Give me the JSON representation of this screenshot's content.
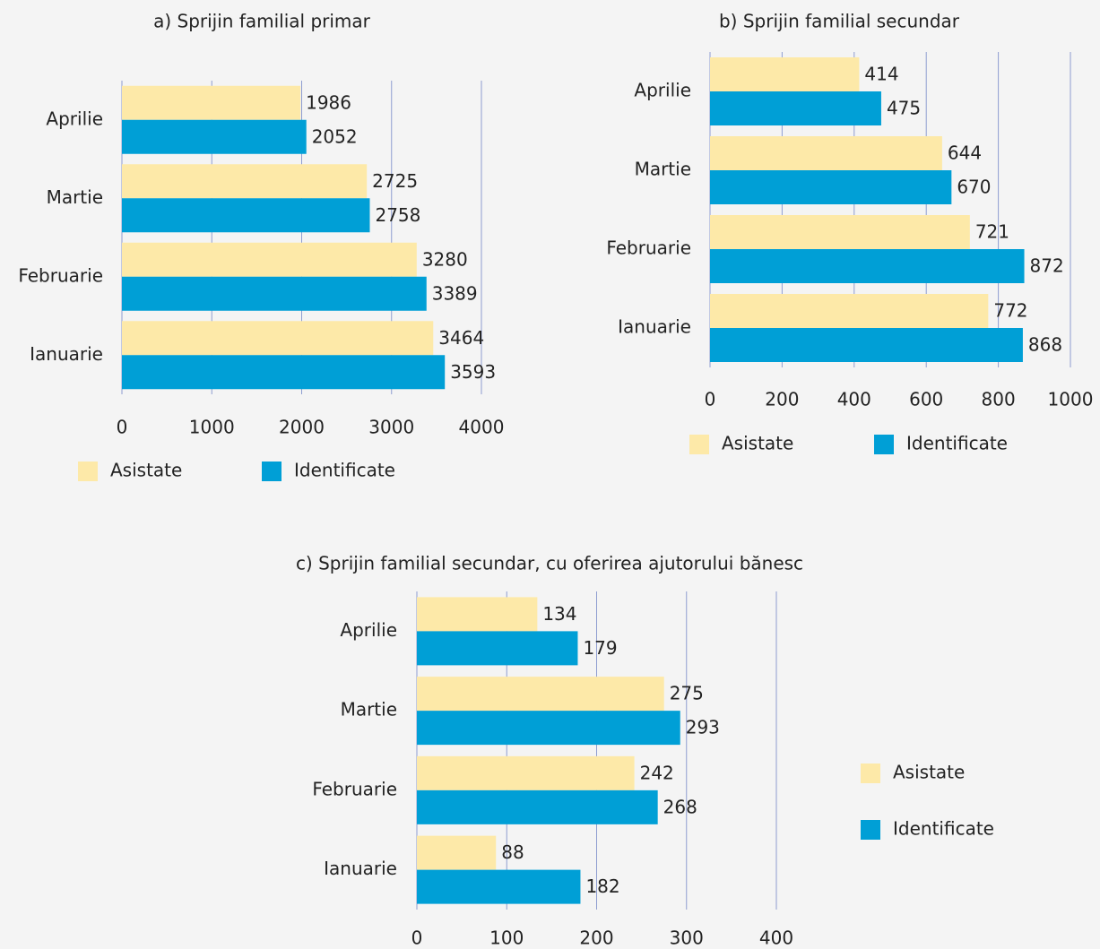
{
  "chart_data": [
    {
      "type": "bar",
      "orientation": "horizontal",
      "title": "a) Sprijin familial primar",
      "categories": [
        "Aprilie",
        "Martie",
        "Februarie",
        "Ianuarie"
      ],
      "series": [
        {
          "name": "Asistate",
          "color": "#fde9a8",
          "values": [
            1986,
            2725,
            3280,
            3464
          ]
        },
        {
          "name": "Identificate",
          "color": "#009fd6",
          "values": [
            2052,
            2758,
            3389,
            3593
          ]
        }
      ],
      "xlim": [
        0,
        4000
      ],
      "xticks": [
        0,
        1000,
        2000,
        3000,
        4000
      ],
      "grid": true,
      "legend": "bottom"
    },
    {
      "type": "bar",
      "orientation": "horizontal",
      "title": "b) Sprijin familial secundar",
      "categories": [
        "Aprilie",
        "Martie",
        "Februarie",
        "Ianuarie"
      ],
      "series": [
        {
          "name": "Asistate",
          "color": "#fde9a8",
          "values": [
            414,
            644,
            721,
            772
          ]
        },
        {
          "name": "Identificate",
          "color": "#009fd6",
          "values": [
            475,
            670,
            872,
            868
          ]
        }
      ],
      "xlim": [
        0,
        1000
      ],
      "xticks": [
        0,
        200,
        400,
        600,
        800,
        1000
      ],
      "grid": true,
      "legend": "bottom"
    },
    {
      "type": "bar",
      "orientation": "horizontal",
      "title": "c) Sprijin familial secundar, cu oferirea ajutorului bănesc",
      "categories": [
        "Aprilie",
        "Martie",
        "Februarie",
        "Ianuarie"
      ],
      "series": [
        {
          "name": "Asistate",
          "color": "#fde9a8",
          "values": [
            134,
            275,
            242,
            88
          ]
        },
        {
          "name": "Identificate",
          "color": "#009fd6",
          "values": [
            179,
            293,
            268,
            182
          ]
        }
      ],
      "xlim": [
        0,
        400
      ],
      "xticks": [
        0,
        100,
        200,
        300,
        400
      ],
      "grid": true,
      "legend": "right"
    }
  ]
}
